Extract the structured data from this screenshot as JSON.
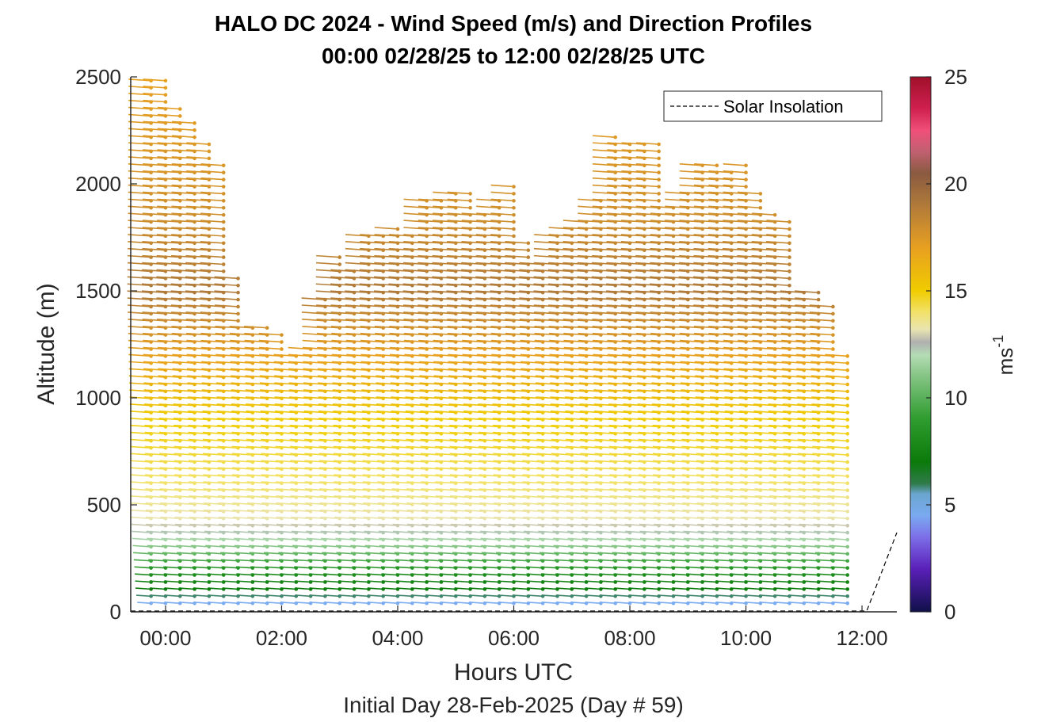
{
  "chart_data": {
    "type": "wind-barb-profile",
    "title": "HALO DC 2024 - Wind Speed (m/s) and Direction Profiles",
    "subtitle": "00:00 02/28/25 to 12:00 02/28/25  UTC",
    "xlabel": "Hours UTC",
    "ylabel": "Altitude (m)",
    "footer": "Initial Day 28-Feb-2025 (Day # 59)",
    "x_tick_labels": [
      "00:00",
      "02:00",
      "04:00",
      "06:00",
      "08:00",
      "10:00",
      "12:00"
    ],
    "x_ticks_hours": [
      0,
      2,
      4,
      6,
      8,
      10,
      12
    ],
    "xlim_hours": [
      -0.6,
      12.6
    ],
    "y_tick_labels": [
      "0",
      "500",
      "1000",
      "1500",
      "2000",
      "2500"
    ],
    "y_ticks": [
      0,
      500,
      1000,
      1500,
      2000,
      2500
    ],
    "ylim": [
      0,
      2500
    ],
    "colorbar": {
      "label": "ms",
      "label_superscript": "-1",
      "tick_labels": [
        "0",
        "5",
        "10",
        "15",
        "20",
        "25"
      ],
      "ticks": [
        0,
        5,
        10,
        15,
        20,
        25
      ],
      "range": [
        0,
        25
      ],
      "stops": [
        {
          "v": 0,
          "c": "#10104a"
        },
        {
          "v": 2,
          "c": "#5a1fb8"
        },
        {
          "v": 3.5,
          "c": "#7d6fe8"
        },
        {
          "v": 4.5,
          "c": "#7aaaf0"
        },
        {
          "v": 5.5,
          "c": "#6aa6d0"
        },
        {
          "v": 6.0,
          "c": "#2f7a4a"
        },
        {
          "v": 7.0,
          "c": "#0a7a0a"
        },
        {
          "v": 9.0,
          "c": "#2e9c2e"
        },
        {
          "v": 11.0,
          "c": "#84c484"
        },
        {
          "v": 12.0,
          "c": "#b4dcb4"
        },
        {
          "v": 12.6,
          "c": "#b0b0b0"
        },
        {
          "v": 13.2,
          "c": "#e8e4b0"
        },
        {
          "v": 14.0,
          "c": "#f2e26a"
        },
        {
          "v": 15.0,
          "c": "#f0cc00"
        },
        {
          "v": 17.0,
          "c": "#e8a020"
        },
        {
          "v": 19.0,
          "c": "#b07a3a"
        },
        {
          "v": 20.5,
          "c": "#8a5a40"
        },
        {
          "v": 21.5,
          "c": "#c06070"
        },
        {
          "v": 22.5,
          "c": "#f0507a"
        },
        {
          "v": 23.5,
          "c": "#d02050"
        },
        {
          "v": 25,
          "c": "#a0102a"
        }
      ]
    },
    "legend": {
      "label": "Solar Insolation",
      "placement": "top-right"
    },
    "profile_times_hours": [
      -0.25,
      0.0,
      0.25,
      0.5,
      0.75,
      1.0,
      1.25,
      1.5,
      1.75,
      2.0,
      2.25,
      2.5,
      2.75,
      3.0,
      3.25,
      3.5,
      3.75,
      4.0,
      4.25,
      4.5,
      4.75,
      5.0,
      5.25,
      5.5,
      5.75,
      6.0,
      6.25,
      6.5,
      6.75,
      7.0,
      7.25,
      7.5,
      7.75,
      8.0,
      8.25,
      8.5,
      8.75,
      9.0,
      9.25,
      9.5,
      9.75,
      10.0,
      10.25,
      10.5,
      10.75,
      11.0,
      11.25,
      11.5,
      11.75
    ],
    "profile_top_altitude_m": [
      2490,
      2500,
      2360,
      2300,
      2190,
      2090,
      1570,
      1330,
      1350,
      1320,
      1210,
      1260,
      1460,
      1660,
      1620,
      1760,
      1780,
      1800,
      1780,
      1930,
      1950,
      1960,
      1960,
      1880,
      1930,
      2010,
      1750,
      1650,
      1770,
      1800,
      1830,
      1950,
      2250,
      2210,
      2200,
      2190,
      1910,
      1970,
      2100,
      2100,
      2060,
      2090,
      1980,
      1870,
      1830,
      1520,
      1510,
      1450,
      1220
    ],
    "speed_by_altitude_ms": [
      {
        "altitude_m": 40,
        "speed": 4.5
      },
      {
        "altitude_m": 100,
        "speed": 7.0
      },
      {
        "altitude_m": 200,
        "speed": 8.5
      },
      {
        "altitude_m": 300,
        "speed": 11.0
      },
      {
        "altitude_m": 420,
        "speed": 13.2
      },
      {
        "altitude_m": 600,
        "speed": 14.0
      },
      {
        "altitude_m": 900,
        "speed": 15.0
      },
      {
        "altitude_m": 1200,
        "speed": 17.0
      },
      {
        "altitude_m": 1500,
        "speed": 19.0
      },
      {
        "altitude_m": 1800,
        "speed": 18.0
      },
      {
        "altitude_m": 2100,
        "speed": 17.5
      },
      {
        "altitude_m": 2500,
        "speed": 17.0
      }
    ],
    "profile_altitude_step_m": 33,
    "wind_direction_deg": 285
  }
}
